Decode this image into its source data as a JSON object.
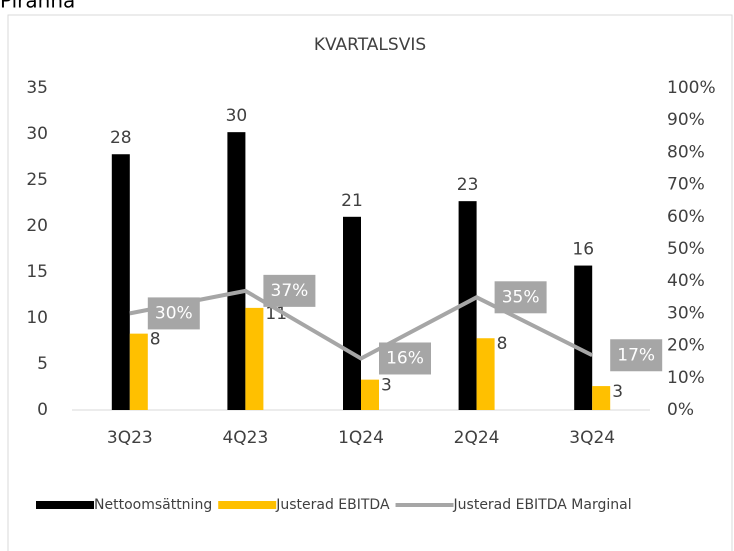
{
  "page_title": "Piranha",
  "chart_data": {
    "type": "bar_line",
    "title": "KVARTALSVIS",
    "categories": [
      "3Q23",
      "4Q23",
      "1Q24",
      "2Q24",
      "3Q24"
    ],
    "series": [
      {
        "name": "Nettoomsättning",
        "color": "#000000",
        "type": "bar",
        "values": [
          27.8,
          30.2,
          21,
          22.7,
          15.7
        ],
        "value_labels": [
          "28",
          "30",
          "21",
          "23",
          "16"
        ]
      },
      {
        "name": "Justerad EBITDA",
        "color": "#ffc000",
        "type": "bar",
        "values": [
          8.3,
          11.1,
          3.3,
          7.8,
          2.6
        ],
        "value_labels": [
          "8",
          "11",
          "3",
          "8",
          "3"
        ]
      },
      {
        "name": "Justerad EBITDA Marginal",
        "color": "#a6a6a6",
        "type": "line",
        "axis": "y2",
        "values": [
          30,
          37,
          16,
          35,
          17
        ],
        "value_labels": [
          "30%",
          "37%",
          "16%",
          "35%",
          "17%"
        ]
      }
    ],
    "ylim": [
      0,
      35
    ],
    "yticks": [
      0,
      5,
      10,
      15,
      20,
      25,
      30,
      35
    ],
    "y2lim": [
      0,
      100
    ],
    "y2ticks": [
      {
        "value": 0,
        "label": "0%"
      },
      {
        "value": 10,
        "label": "10%"
      },
      {
        "value": 20,
        "label": "20%"
      },
      {
        "value": 30,
        "label": "30%"
      },
      {
        "value": 40,
        "label": "40%"
      },
      {
        "value": 50,
        "label": "50%"
      },
      {
        "value": 60,
        "label": "60%"
      },
      {
        "value": 70,
        "label": "70%"
      },
      {
        "value": 80,
        "label": "80%"
      },
      {
        "value": 90,
        "label": "90%"
      },
      {
        "value": 100,
        "label": "100%"
      }
    ],
    "grid": false,
    "legend": "bottom"
  }
}
